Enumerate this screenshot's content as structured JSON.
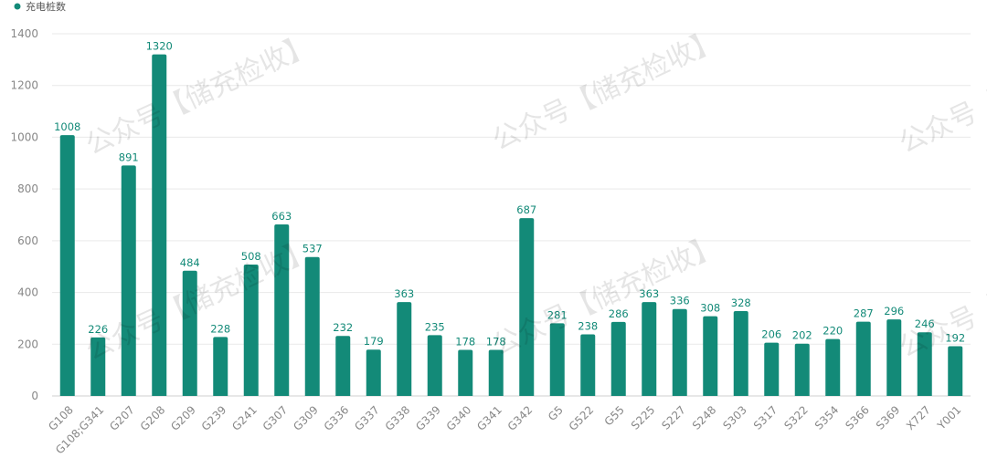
{
  "chart_data": {
    "type": "bar",
    "legend": {
      "label": "充电桩数",
      "position": "top-left"
    },
    "color": "#138a78",
    "grid": true,
    "ylim": [
      0,
      1400
    ],
    "yticks": [
      0,
      200,
      400,
      600,
      800,
      1000,
      1200,
      1400
    ],
    "categories": [
      "G108",
      "G108;G341",
      "G207",
      "G208",
      "G209",
      "G239",
      "G241",
      "G307",
      "G309",
      "G336",
      "G337",
      "G338",
      "G339",
      "G340",
      "G341",
      "G342",
      "G5",
      "G522",
      "G55",
      "S225",
      "S227",
      "S248",
      "S303",
      "S317",
      "S322",
      "S354",
      "S366",
      "S369",
      "X727",
      "Y001"
    ],
    "series": [
      {
        "name": "充电桩数",
        "values": [
          1008,
          226,
          891,
          1320,
          484,
          228,
          508,
          663,
          537,
          232,
          179,
          363,
          235,
          178,
          178,
          687,
          281,
          238,
          286,
          363,
          336,
          308,
          328,
          206,
          202,
          220,
          287,
          296,
          246,
          192
        ]
      }
    ]
  },
  "watermark": "公众号【储充检收】"
}
